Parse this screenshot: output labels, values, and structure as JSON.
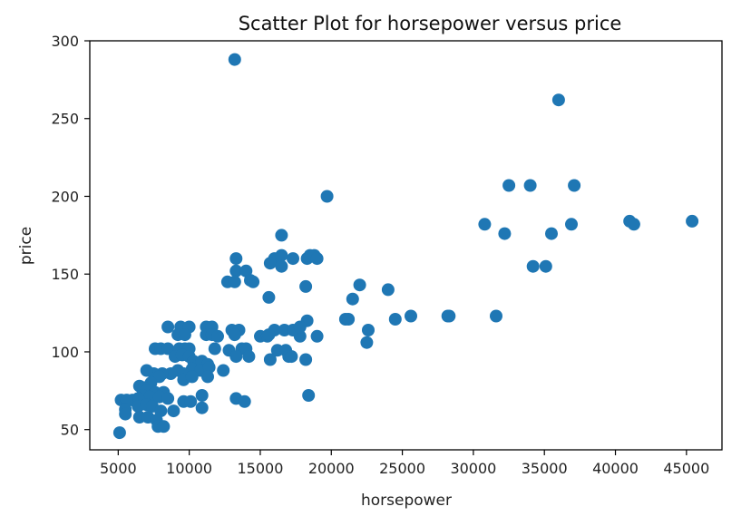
{
  "chart_data": {
    "type": "scatter",
    "title": "Scatter Plot for horsepower versus price",
    "xlabel": "horsepower",
    "ylabel": "price",
    "xlim": [
      3000,
      47500
    ],
    "ylim": [
      37,
      300
    ],
    "xticks": [
      5000,
      10000,
      15000,
      20000,
      25000,
      30000,
      35000,
      40000,
      45000
    ],
    "yticks": [
      50,
      100,
      150,
      200,
      250,
      300
    ],
    "grid": false,
    "legend": "none",
    "marker_color": "#1f77b4",
    "points": [
      [
        13200,
        288
      ],
      [
        36000,
        262
      ],
      [
        19700,
        200
      ],
      [
        32500,
        207
      ],
      [
        34000,
        207
      ],
      [
        37100,
        207
      ],
      [
        30800,
        182
      ],
      [
        36900,
        182
      ],
      [
        41000,
        184
      ],
      [
        41300,
        182
      ],
      [
        45400,
        184
      ],
      [
        32200,
        176
      ],
      [
        35500,
        176
      ],
      [
        34200,
        155
      ],
      [
        35100,
        155
      ],
      [
        16500,
        175
      ],
      [
        13300,
        160
      ],
      [
        16000,
        160
      ],
      [
        16500,
        162
      ],
      [
        17300,
        160
      ],
      [
        18300,
        160
      ],
      [
        18500,
        162
      ],
      [
        18800,
        162
      ],
      [
        19000,
        160
      ],
      [
        13300,
        152
      ],
      [
        14000,
        152
      ],
      [
        15700,
        157
      ],
      [
        16500,
        155
      ],
      [
        12700,
        145
      ],
      [
        13200,
        145
      ],
      [
        14300,
        146
      ],
      [
        14500,
        145
      ],
      [
        18200,
        142
      ],
      [
        22000,
        143
      ],
      [
        24000,
        140
      ],
      [
        15600,
        135
      ],
      [
        21500,
        134
      ],
      [
        21000,
        121
      ],
      [
        21200,
        121
      ],
      [
        24500,
        121
      ],
      [
        25600,
        123
      ],
      [
        28200,
        123
      ],
      [
        28300,
        123
      ],
      [
        31600,
        123
      ],
      [
        18300,
        120
      ],
      [
        22600,
        114
      ],
      [
        22500,
        106
      ],
      [
        19000,
        110
      ],
      [
        17800,
        110
      ],
      [
        15000,
        110
      ],
      [
        15500,
        110
      ],
      [
        13000,
        114
      ],
      [
        13500,
        114
      ],
      [
        16000,
        114
      ],
      [
        16700,
        114
      ],
      [
        17300,
        114
      ],
      [
        17800,
        116
      ],
      [
        8500,
        116
      ],
      [
        9400,
        116
      ],
      [
        10000,
        116
      ],
      [
        11200,
        116
      ],
      [
        11600,
        116
      ],
      [
        9200,
        111
      ],
      [
        9700,
        111
      ],
      [
        11200,
        111
      ],
      [
        11600,
        111
      ],
      [
        12000,
        110
      ],
      [
        13200,
        111
      ],
      [
        15600,
        111
      ],
      [
        7600,
        102
      ],
      [
        8000,
        102
      ],
      [
        8500,
        102
      ],
      [
        9300,
        102
      ],
      [
        9700,
        102
      ],
      [
        10000,
        102
      ],
      [
        11800,
        102
      ],
      [
        12800,
        101
      ],
      [
        13700,
        102
      ],
      [
        14000,
        102
      ],
      [
        16200,
        101
      ],
      [
        16800,
        101
      ],
      [
        13300,
        97
      ],
      [
        14200,
        97
      ],
      [
        17000,
        97
      ],
      [
        17200,
        97
      ],
      [
        15700,
        95
      ],
      [
        18200,
        95
      ],
      [
        9000,
        97
      ],
      [
        9500,
        98
      ],
      [
        10000,
        97
      ],
      [
        10300,
        94
      ],
      [
        10900,
        94
      ],
      [
        11300,
        92
      ],
      [
        10200,
        89
      ],
      [
        10800,
        88
      ],
      [
        11400,
        90
      ],
      [
        12400,
        88
      ],
      [
        9200,
        88
      ],
      [
        9600,
        86
      ],
      [
        8700,
        86
      ],
      [
        8100,
        86
      ],
      [
        7500,
        86
      ],
      [
        7900,
        84
      ],
      [
        7300,
        80
      ],
      [
        7000,
        88
      ],
      [
        6500,
        78
      ],
      [
        6800,
        77
      ],
      [
        7000,
        75
      ],
      [
        7600,
        74
      ],
      [
        8200,
        74
      ],
      [
        9600,
        82
      ],
      [
        10200,
        84
      ],
      [
        11300,
        84
      ],
      [
        6700,
        72
      ],
      [
        7200,
        71
      ],
      [
        7900,
        71
      ],
      [
        8500,
        70
      ],
      [
        6400,
        70
      ],
      [
        6000,
        69
      ],
      [
        5200,
        69
      ],
      [
        5600,
        69
      ],
      [
        13300,
        70
      ],
      [
        13900,
        68
      ],
      [
        18400,
        72
      ],
      [
        9600,
        68
      ],
      [
        10100,
        68
      ],
      [
        10900,
        72
      ],
      [
        6400,
        65
      ],
      [
        7000,
        66
      ],
      [
        7400,
        65
      ],
      [
        8000,
        62
      ],
      [
        8900,
        62
      ],
      [
        10900,
        64
      ],
      [
        5500,
        63
      ],
      [
        5500,
        60
      ],
      [
        6500,
        58
      ],
      [
        7100,
        58
      ],
      [
        7700,
        56
      ],
      [
        7800,
        52
      ],
      [
        8200,
        52
      ],
      [
        5100,
        48
      ]
    ]
  }
}
